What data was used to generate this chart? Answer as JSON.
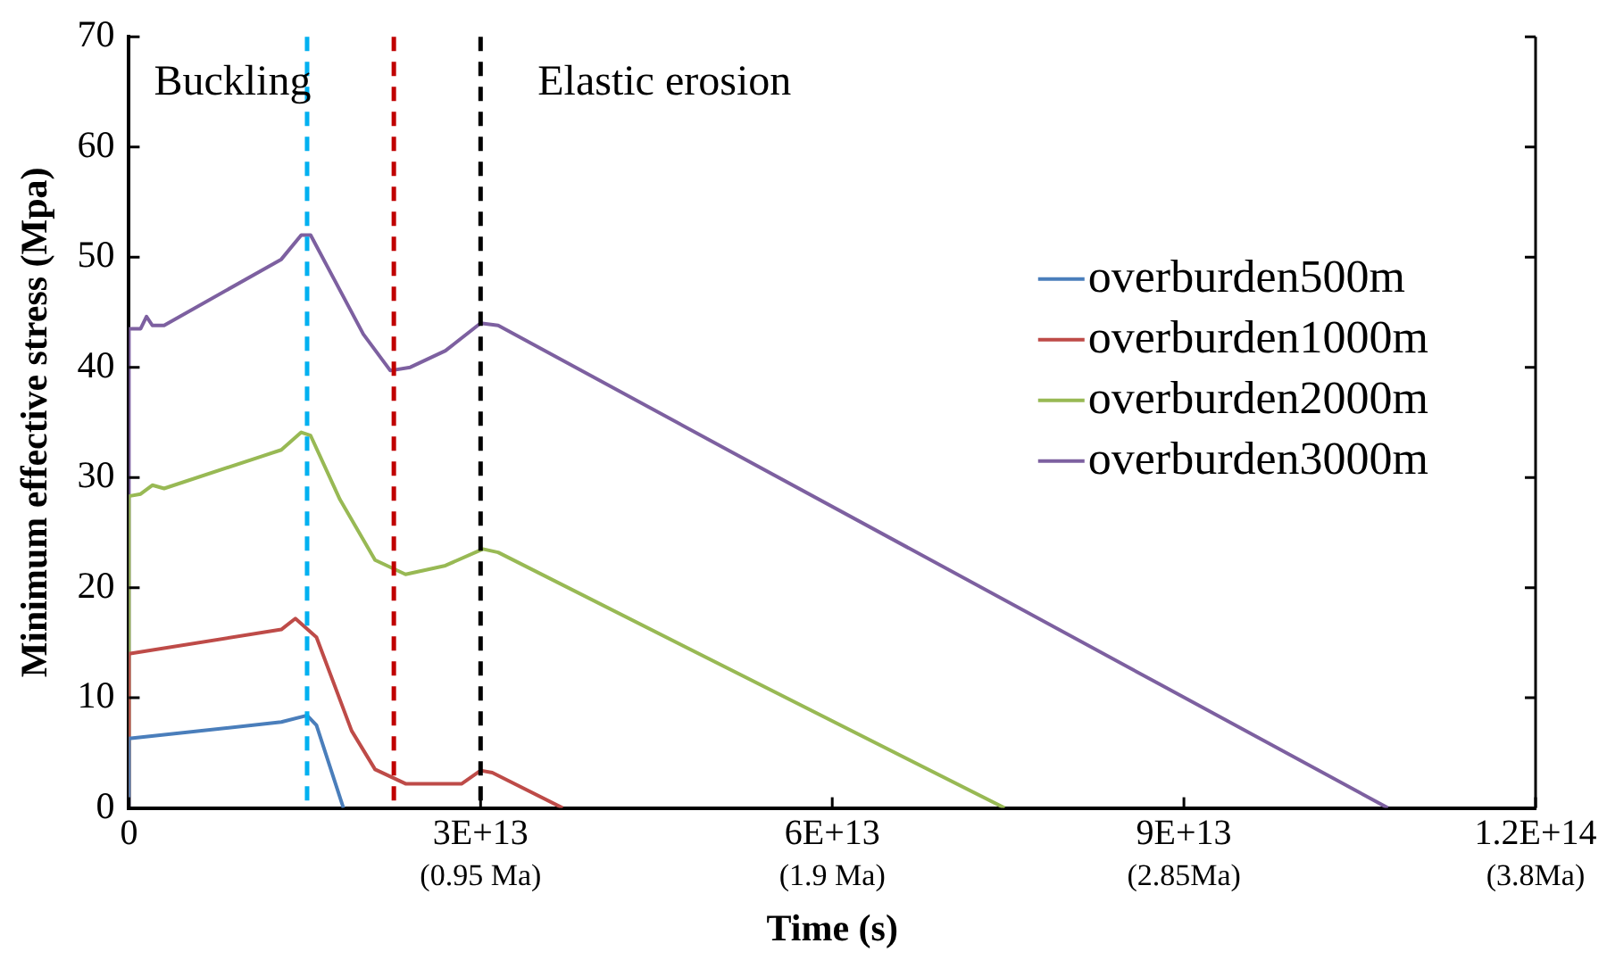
{
  "chart_data": {
    "type": "line",
    "xlabel": "Time (s)",
    "ylabel": "Minimum effective stress (Mpa)",
    "xlim": [
      0,
      120000000000000.0
    ],
    "ylim": [
      0,
      70
    ],
    "xticks": [
      0,
      {
        "value": 30000000000000.0,
        "label": "3E+13"
      },
      {
        "value": 60000000000000.0,
        "label": "6E+13"
      },
      {
        "value": 90000000000000.0,
        "label": "9E+13"
      },
      {
        "value": 120000000000000.0,
        "label": "1.2E+14"
      }
    ],
    "yticks": [
      0,
      10,
      20,
      30,
      40,
      50,
      60,
      70
    ],
    "grid": false,
    "legend": "right",
    "marker": "none",
    "line_style": "solid",
    "series": [
      {
        "name": "overburden500m",
        "color": "#4a7ebb",
        "x": [
          0,
          0,
          13000000000000.0,
          15200000000000.0,
          16000000000000.0,
          18300000000000.0
        ],
        "values": [
          0,
          6.3,
          7.8,
          8.4,
          7.5,
          0
        ]
      },
      {
        "name": "overburden1000m",
        "color": "#be4b48",
        "x": [
          0,
          0,
          13000000000000.0,
          14200000000000.0,
          16000000000000.0,
          19000000000000.0,
          21000000000000.0,
          23600000000000.0,
          28400000000000.0,
          30000000000000.0,
          31000000000000.0,
          37000000000000.0
        ],
        "values": [
          0,
          14,
          16.2,
          17.2,
          15.5,
          7,
          3.5,
          2.2,
          2.2,
          3.4,
          3.2,
          0
        ]
      },
      {
        "name": "overburden2000m",
        "color": "#98b954",
        "x": [
          0,
          0,
          1000000000000.0,
          2000000000000.0,
          3000000000000.0,
          13000000000000.0,
          14700000000000.0,
          15500000000000.0,
          18000000000000.0,
          21000000000000.0,
          23600000000000.0,
          27000000000000.0,
          30200000000000.0,
          31500000000000.0,
          74700000000000.0
        ],
        "values": [
          0,
          28.3,
          28.5,
          29.3,
          29,
          32.5,
          34.1,
          33.8,
          28,
          22.5,
          21.2,
          22,
          23.5,
          23.2,
          0
        ]
      },
      {
        "name": "overburden3000m",
        "color": "#7d60a0",
        "x": [
          0,
          0,
          1000000000000.0,
          1500000000000.0,
          2000000000000.0,
          3000000000000.0,
          13000000000000.0,
          14700000000000.0,
          15500000000000.0,
          17500000000000.0,
          20000000000000.0,
          22300000000000.0,
          24000000000000.0,
          27000000000000.0,
          30000000000000.0,
          31500000000000.0,
          107400000000000.0
        ],
        "values": [
          0,
          43.5,
          43.5,
          44.6,
          43.8,
          43.8,
          49.8,
          52,
          52,
          48,
          43,
          39.7,
          40,
          41.5,
          44,
          43.8,
          0
        ]
      }
    ],
    "ref_lines": [
      {
        "axis": "x",
        "value": 15200000000000.0,
        "color": "#00b0f0",
        "line_style": "dashed"
      },
      {
        "axis": "x",
        "value": 22600000000000.0,
        "color": "#c00000",
        "line_style": "dashed"
      },
      {
        "axis": "x",
        "value": 30000000000000.0,
        "color": "#000000",
        "line_style": "dashed"
      }
    ],
    "annotations": [
      "Buckling",
      "Elastic erosion",
      "(0.95 Ma)",
      "(1.9 Ma)",
      "(2.85Ma)",
      "(3.8Ma)"
    ]
  }
}
